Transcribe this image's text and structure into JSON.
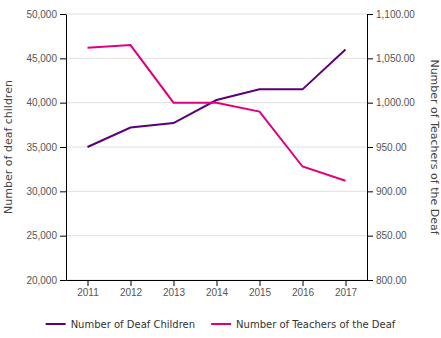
{
  "chart_data": {
    "type": "line",
    "x": [
      2011,
      2012,
      2013,
      2014,
      2015,
      2016,
      2017
    ],
    "xlim": [
      2010.5,
      2017.5
    ],
    "xticks": [
      2011,
      2012,
      2013,
      2014,
      2015,
      2016,
      2017
    ],
    "ylim": [
      20000,
      50000
    ],
    "yticks": [
      {
        "value": 20000,
        "label": "20,000"
      },
      {
        "value": 25000,
        "label": "25,000"
      },
      {
        "value": 30000,
        "label": "30,000"
      },
      {
        "value": 35000,
        "label": "35,000"
      },
      {
        "value": 40000,
        "label": "40,000"
      },
      {
        "value": 45000,
        "label": "45,000"
      },
      {
        "value": 50000,
        "label": "50,000"
      }
    ],
    "y2lim": [
      800,
      1100
    ],
    "y2ticks": [
      {
        "value": 800.0,
        "label": "800.00"
      },
      {
        "value": 850.0,
        "label": "850.00"
      },
      {
        "value": 900.0,
        "label": "900.00"
      },
      {
        "value": 950.0,
        "label": "950.00"
      },
      {
        "value": 1000.0,
        "label": "1,000.00"
      },
      {
        "value": 1050.0,
        "label": "1,050.00"
      },
      {
        "value": 1100.0,
        "label": "1,100.00"
      }
    ],
    "y_label": "Number of deaf children",
    "y2_label": "Number of Teachers of the Deaf",
    "series": [
      {
        "name": "Number of Deaf Children",
        "color": "#5b0075",
        "values": [
          35000,
          37200,
          37700,
          40300,
          41500,
          41500,
          46000
        ]
      },
      {
        "name": "Number of Teachers of the Deaf",
        "color": "#e0007f",
        "axis": "y2",
        "values": [
          1062,
          1065,
          1000,
          1000,
          990,
          928,
          912
        ]
      }
    ],
    "grid": true,
    "legend": "bottom"
  }
}
